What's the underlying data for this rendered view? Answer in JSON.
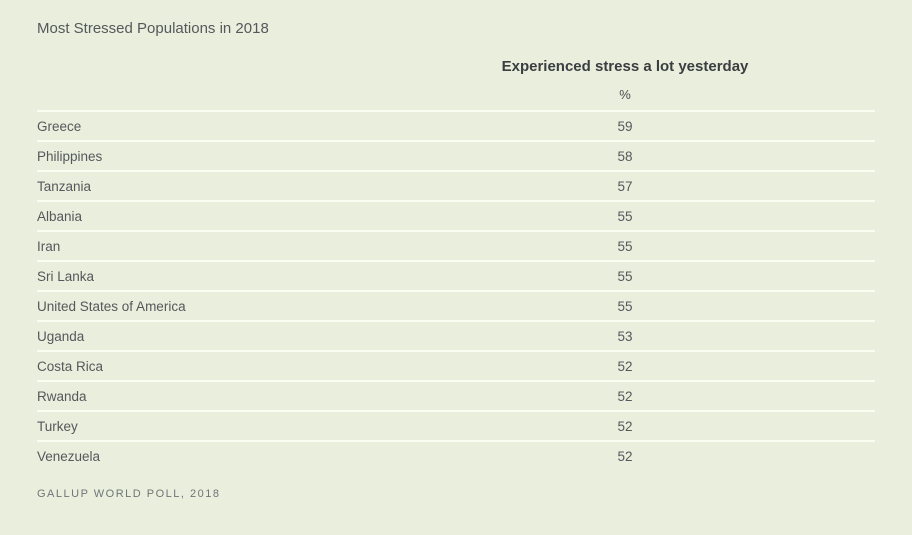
{
  "colors": {
    "background": "#e9efdc",
    "separator": "#fbfdf2",
    "title_text": "#55585c",
    "header_text": "#3b3e41",
    "body_text": "#55585c",
    "source_text": "#6f7478"
  },
  "chart_data": {
    "type": "table",
    "title": "Most Stressed Populations in 2018",
    "column_group_header": "Experienced stress a lot yesterday",
    "unit_label": "%",
    "categories": [
      "Greece",
      "Philippines",
      "Tanzania",
      "Albania",
      "Iran",
      "Sri Lanka",
      "United States of America",
      "Uganda",
      "Costa Rica",
      "Rwanda",
      "Turkey",
      "Venezuela"
    ],
    "values": [
      59,
      58,
      57,
      55,
      55,
      55,
      55,
      53,
      52,
      52,
      52,
      52
    ],
    "source": "GALLUP WORLD POLL, 2018",
    "layout": {
      "legend": "none",
      "grid": "horizontal-row-separators",
      "value_alignment": "center"
    }
  }
}
